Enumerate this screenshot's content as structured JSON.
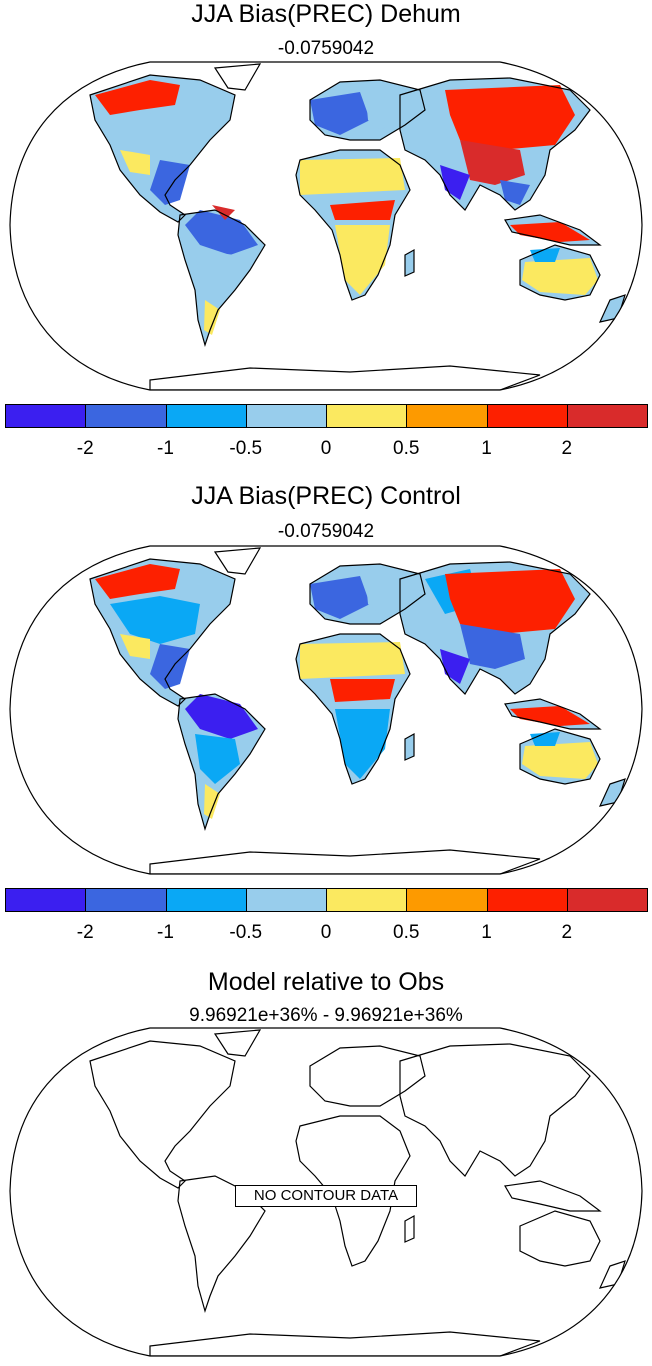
{
  "panels": [
    {
      "title": "JJA Bias(PREC) Dehum",
      "subtitle": "-0.0759042",
      "has_colorbar": true,
      "has_data": true
    },
    {
      "title": "JJA Bias(PREC) Control",
      "subtitle": "-0.0759042",
      "has_colorbar": true,
      "has_data": true
    },
    {
      "title": "Model relative to Obs",
      "subtitle": "9.96921e+36% - 9.96921e+36%",
      "has_colorbar": false,
      "has_data": false,
      "no_data_label": "NO CONTOUR DATA"
    }
  ],
  "colorbar": {
    "colors": [
      "#3b1ff0",
      "#3b66e0",
      "#0aa8f5",
      "#98cdec",
      "#fbe960",
      "#fd9a00",
      "#fd2000",
      "#d92b2b"
    ],
    "labels": [
      "-2",
      "-1",
      "-0.5",
      "0",
      "0.5",
      "1",
      "2"
    ]
  },
  "projection": "Robinson",
  "land_outline_color": "#000000"
}
